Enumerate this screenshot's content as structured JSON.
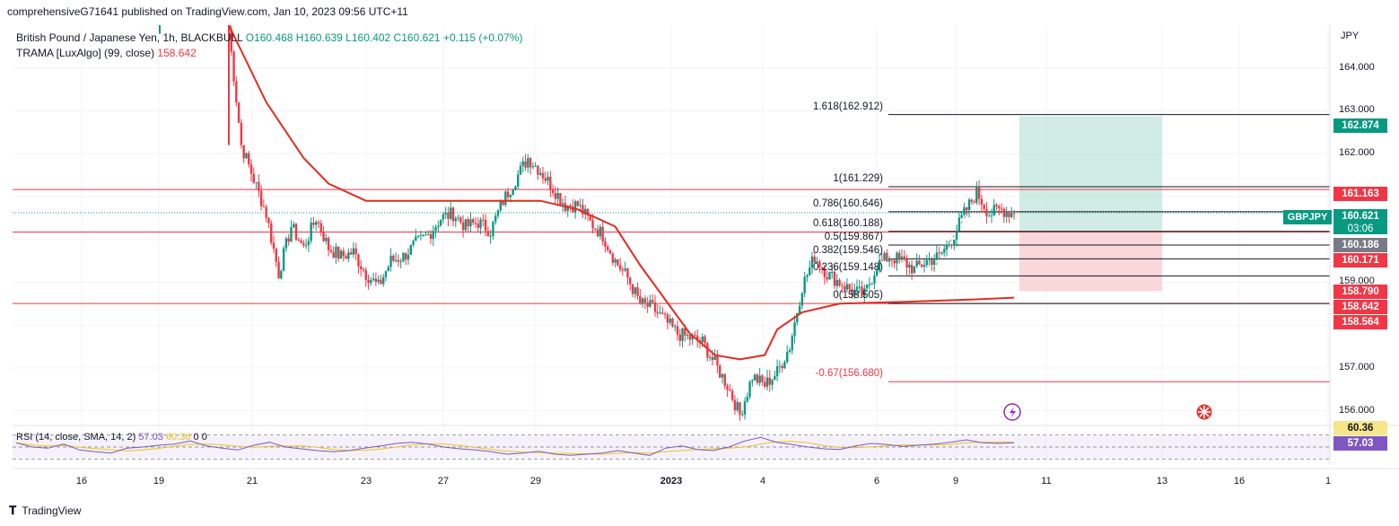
{
  "header": {
    "text": "comprehensiveG71641 published on TradingView.com, Jan 10, 2023 09:56 UTC+11"
  },
  "legend": {
    "symbol": "British Pound / Japanese Yen, 1h, BLACKBULL",
    "ohlc": "O160.468 H160.639 L160.402 C160.621 +0.115 (+0.07%)",
    "indicator_name": "TRAMA [LuxAlgo] (99, close)",
    "indicator_value": "158.642"
  },
  "rsi_legend": {
    "label": "RSI (14, close, SMA, 14, 2)",
    "rsi": "57.03",
    "sma": "60.36",
    "extra": "0  0"
  },
  "footer": {
    "brand": "TradingView"
  },
  "colors": {
    "up": "#089981",
    "down": "#f23645",
    "trama": "#e52a1f",
    "rsi": "#7e57c2",
    "rsi_sma": "#f0c419",
    "tp_zone": "#b2dfd3",
    "sl_zone": "#f8c9cf"
  },
  "chart_data": {
    "type": "candlestick",
    "symbol": "GBPJPY",
    "unit": "JPY",
    "timeframe": "1h",
    "x_tick_labels": [
      "16",
      "19",
      "21",
      "23",
      "27",
      "29",
      "2023",
      "4",
      "6",
      "9",
      "11",
      "13",
      "16",
      "1"
    ],
    "y_tick_labels": [
      "164.000",
      "163.000",
      "162.000",
      "161.000",
      "159.000",
      "157.000",
      "156.000"
    ],
    "ylim": [
      155.7,
      165.0
    ],
    "fibonacci": [
      {
        "label": "1.618(162.912)",
        "level": 162.912
      },
      {
        "label": "1(161.229)",
        "level": 161.229
      },
      {
        "label": "0.786(160.646)",
        "level": 160.646
      },
      {
        "label": "0.618(160.188)",
        "level": 160.188
      },
      {
        "label": "0.5(159.867)",
        "level": 159.867
      },
      {
        "label": "0.382(159.546)",
        "level": 159.546
      },
      {
        "label": "0.236(159.148)",
        "level": 159.148
      },
      {
        "label": "0(158.505)",
        "level": 158.505
      },
      {
        "label": "-0.67(156.680)",
        "level": 156.68
      }
    ],
    "horizontal_lines": [
      161.163,
      160.171,
      158.505
    ],
    "price_labels": [
      {
        "value": "162.874",
        "color": "#089981"
      },
      {
        "value": "161.163",
        "color": "#f23645"
      },
      {
        "value": "160.621",
        "color": "#089981",
        "countdown": "03:06",
        "tag": "GBPJPY"
      },
      {
        "value": "160.186",
        "color": "#787b86"
      },
      {
        "value": "160.171",
        "color": "#f23645"
      },
      {
        "value": "158.790",
        "color": "#f23645"
      },
      {
        "value": "158.642",
        "color": "#f23645"
      },
      {
        "value": "158.564",
        "color": "#f23645"
      }
    ],
    "position": {
      "entry": 160.186,
      "target": 162.874,
      "stop": 158.79
    },
    "series": [
      {
        "name": "GBPJPY",
        "close_path": [
          [
            0,
            164.9
          ],
          [
            2,
            162.2
          ],
          [
            4,
            161.4
          ],
          [
            6,
            160.6
          ],
          [
            8,
            159.2
          ],
          [
            10,
            160.3
          ],
          [
            12,
            159.8
          ],
          [
            14,
            160.5
          ],
          [
            16,
            159.8
          ],
          [
            18,
            159.6
          ],
          [
            20,
            159.7
          ],
          [
            22,
            159.2
          ],
          [
            24,
            158.9
          ],
          [
            26,
            159.5
          ],
          [
            28,
            159.6
          ],
          [
            30,
            159.9
          ],
          [
            32,
            160.1
          ],
          [
            34,
            160.5
          ],
          [
            36,
            160.6
          ],
          [
            38,
            160.3
          ],
          [
            40,
            160.4
          ],
          [
            42,
            160.2
          ],
          [
            44,
            160.9
          ],
          [
            46,
            161.4
          ],
          [
            48,
            161.9
          ],
          [
            50,
            161.6
          ],
          [
            52,
            161.2
          ],
          [
            54,
            160.8
          ],
          [
            56,
            160.8
          ],
          [
            58,
            160.4
          ],
          [
            60,
            160.1
          ],
          [
            62,
            159.5
          ],
          [
            64,
            159.1
          ],
          [
            66,
            158.5
          ],
          [
            68,
            158.4
          ],
          [
            70,
            158.1
          ],
          [
            72,
            157.8
          ],
          [
            74,
            157.7
          ],
          [
            76,
            157.6
          ],
          [
            78,
            157.1
          ],
          [
            80,
            156.6
          ],
          [
            82,
            155.9
          ],
          [
            84,
            156.8
          ],
          [
            86,
            156.6
          ],
          [
            88,
            156.9
          ],
          [
            90,
            157.5
          ],
          [
            92,
            158.9
          ],
          [
            94,
            159.6
          ],
          [
            96,
            159.2
          ],
          [
            98,
            159.0
          ],
          [
            100,
            158.8
          ],
          [
            102,
            158.7
          ],
          [
            104,
            159.4
          ],
          [
            106,
            159.6
          ],
          [
            108,
            159.5
          ],
          [
            110,
            159.3
          ],
          [
            112,
            159.5
          ],
          [
            114,
            159.6
          ],
          [
            116,
            160.0
          ],
          [
            118,
            160.6
          ],
          [
            120,
            161.1
          ],
          [
            122,
            160.6
          ],
          [
            124,
            160.7
          ],
          [
            126,
            160.6
          ]
        ]
      },
      {
        "name": "TRAMA",
        "path": [
          [
            0,
            165.0
          ],
          [
            6,
            163.2
          ],
          [
            12,
            161.9
          ],
          [
            16,
            161.3
          ],
          [
            22,
            160.9
          ],
          [
            30,
            160.9
          ],
          [
            40,
            160.9
          ],
          [
            50,
            160.9
          ],
          [
            56,
            160.7
          ],
          [
            62,
            160.3
          ],
          [
            66,
            159.4
          ],
          [
            70,
            158.6
          ],
          [
            74,
            157.8
          ],
          [
            78,
            157.3
          ],
          [
            82,
            157.2
          ],
          [
            86,
            157.3
          ],
          [
            88,
            157.9
          ],
          [
            92,
            158.3
          ],
          [
            98,
            158.5
          ],
          [
            110,
            158.55
          ],
          [
            120,
            158.6
          ],
          [
            126,
            158.64
          ]
        ]
      },
      {
        "name": "RSI",
        "values": [
          57,
          50,
          48,
          55,
          45,
          42,
          40,
          48,
          50,
          53,
          55,
          60,
          52,
          48,
          45,
          53,
          58,
          50,
          47,
          44,
          42,
          44,
          48,
          52,
          56,
          58,
          55,
          50,
          47,
          45,
          42,
          38,
          40,
          43,
          38,
          36,
          38,
          40,
          44,
          40,
          36,
          48,
          52,
          46,
          44,
          50,
          60,
          66,
          58,
          54,
          50,
          47,
          46,
          52,
          56,
          54,
          51,
          53,
          55,
          58,
          62,
          57,
          56,
          57
        ]
      }
    ],
    "rsi_levels": [
      70,
      50,
      30
    ]
  }
}
